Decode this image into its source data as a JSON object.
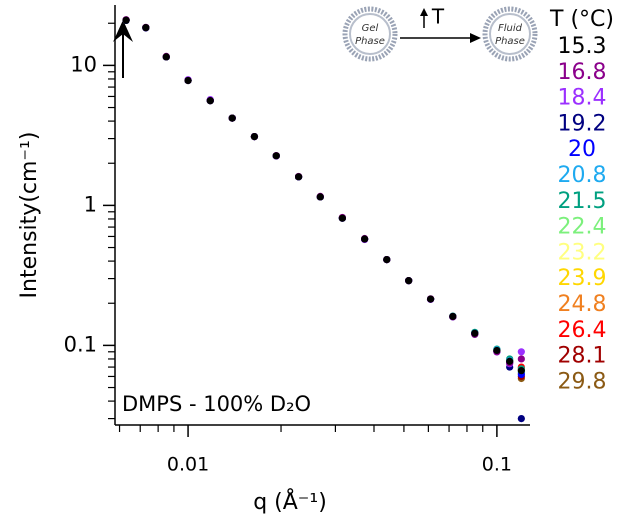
{
  "chart_data": {
    "type": "scatter",
    "xlabel": "q (Å⁻¹)",
    "ylabel": "Intensity(cm⁻¹)",
    "xscale": "log",
    "yscale": "log",
    "xlim": [
      0.0058,
      0.128
    ],
    "ylim": [
      0.027,
      27
    ],
    "xticks": [
      0.01,
      0.1
    ],
    "yticks": [
      0.1,
      1,
      10
    ],
    "xminorticks": [
      0.006,
      0.007,
      0.008,
      0.009,
      0.02,
      0.03,
      0.04,
      0.05,
      0.06,
      0.07,
      0.08,
      0.09
    ],
    "yminorticks": [
      0.03,
      0.04,
      0.05,
      0.06,
      0.07,
      0.08,
      0.09,
      0.2,
      0.3,
      0.4,
      0.5,
      0.6,
      0.7,
      0.8,
      0.9,
      2,
      3,
      4,
      5,
      6,
      7,
      8,
      9,
      20
    ],
    "annotation": "DMPS - 100% D₂O",
    "diagram": {
      "left": [
        "Gel",
        "Phase"
      ],
      "change": "T",
      "right": [
        "Fluid",
        "Phase"
      ]
    },
    "legend_title": "T (°C)",
    "x": [
      0.0063,
      0.0073,
      0.0085,
      0.01,
      0.0118,
      0.0139,
      0.0164,
      0.0193,
      0.0228,
      0.0268,
      0.0316,
      0.0373,
      0.044,
      0.0518,
      0.061,
      0.072,
      0.0848,
      0.1,
      0.11,
      0.12
    ],
    "series": [
      {
        "name": "15.3",
        "color": "#000000",
        "values": [
          21.0,
          18.6,
          11.5,
          7.8,
          5.6,
          4.2,
          3.1,
          2.26,
          1.6,
          1.15,
          0.81,
          0.575,
          0.41,
          0.29,
          0.214,
          0.161,
          0.122,
          0.092,
          0.077,
          0.066
        ]
      },
      {
        "name": "16.8",
        "color": "#8b008b",
        "values": [
          21.2,
          18.7,
          11.6,
          7.8,
          5.6,
          4.2,
          3.1,
          2.27,
          1.61,
          1.16,
          0.82,
          0.58,
          0.41,
          0.29,
          0.215,
          0.16,
          0.12,
          0.09,
          0.075,
          0.08
        ]
      },
      {
        "name": "18.4",
        "color": "#9b30ff",
        "values": [
          21.1,
          18.6,
          11.5,
          7.9,
          5.7,
          4.2,
          3.1,
          2.25,
          1.6,
          1.15,
          0.81,
          0.57,
          0.41,
          0.29,
          0.213,
          0.16,
          0.121,
          0.09,
          0.074,
          0.09
        ]
      },
      {
        "name": "19.2",
        "color": "#000080",
        "values": [
          21.0,
          18.5,
          11.5,
          7.8,
          5.6,
          4.2,
          3.1,
          2.26,
          1.6,
          1.15,
          0.81,
          0.575,
          0.41,
          0.29,
          0.214,
          0.16,
          0.12,
          0.091,
          0.07,
          0.03
        ]
      },
      {
        "name": "20",
        "color": "#0000ff",
        "values": [
          21.0,
          18.6,
          11.5,
          7.8,
          5.6,
          4.2,
          3.1,
          2.26,
          1.6,
          1.15,
          0.81,
          0.575,
          0.41,
          0.29,
          0.214,
          0.161,
          0.122,
          0.09,
          0.076,
          0.062
        ]
      },
      {
        "name": "20.8",
        "color": "#1eaaf0",
        "values": [
          21.0,
          18.6,
          11.5,
          7.8,
          5.6,
          4.2,
          3.1,
          2.26,
          1.6,
          1.15,
          0.81,
          0.575,
          0.41,
          0.29,
          0.214,
          0.16,
          0.121,
          0.093,
          0.078,
          0.064
        ]
      },
      {
        "name": "21.5",
        "color": "#00a080",
        "values": [
          21.0,
          18.6,
          11.5,
          7.8,
          5.6,
          4.2,
          3.1,
          2.26,
          1.6,
          1.15,
          0.81,
          0.575,
          0.41,
          0.29,
          0.214,
          0.162,
          0.124,
          0.094,
          0.08,
          0.068
        ]
      },
      {
        "name": "22.4",
        "color": "#7cf07c",
        "values": [
          21.0,
          18.6,
          11.5,
          7.8,
          5.6,
          4.2,
          3.1,
          2.26,
          1.6,
          1.15,
          0.81,
          0.575,
          0.41,
          0.29,
          0.214,
          0.161,
          0.122,
          0.092,
          0.077,
          0.065
        ]
      },
      {
        "name": "23.2",
        "color": "#ffff80",
        "values": [
          21.0,
          18.6,
          11.5,
          7.8,
          5.6,
          4.2,
          3.1,
          2.26,
          1.6,
          1.15,
          0.81,
          0.575,
          0.41,
          0.29,
          0.214,
          0.161,
          0.122,
          0.092,
          0.077,
          0.066
        ]
      },
      {
        "name": "23.9",
        "color": "#ffd700",
        "values": [
          21.0,
          18.6,
          11.5,
          7.8,
          5.6,
          4.2,
          3.1,
          2.26,
          1.6,
          1.15,
          0.81,
          0.575,
          0.41,
          0.29,
          0.214,
          0.161,
          0.122,
          0.092,
          0.076,
          0.067
        ]
      },
      {
        "name": "24.8",
        "color": "#f08020",
        "values": [
          21.0,
          18.6,
          11.5,
          7.8,
          5.6,
          4.2,
          3.1,
          2.26,
          1.6,
          1.15,
          0.81,
          0.575,
          0.41,
          0.29,
          0.214,
          0.161,
          0.122,
          0.092,
          0.077,
          0.063
        ]
      },
      {
        "name": "26.4",
        "color": "#ff0000",
        "values": [
          21.0,
          18.6,
          11.5,
          7.8,
          5.6,
          4.2,
          3.1,
          2.26,
          1.6,
          1.15,
          0.81,
          0.575,
          0.41,
          0.29,
          0.214,
          0.161,
          0.122,
          0.092,
          0.077,
          0.07
        ]
      },
      {
        "name": "28.1",
        "color": "#a00000",
        "values": [
          21.0,
          18.6,
          11.5,
          7.8,
          5.6,
          4.2,
          3.1,
          2.26,
          1.6,
          1.15,
          0.81,
          0.575,
          0.41,
          0.29,
          0.214,
          0.161,
          0.122,
          0.092,
          0.078,
          0.06
        ]
      },
      {
        "name": "29.8",
        "color": "#8b5a14",
        "values": [
          21.0,
          18.6,
          11.5,
          7.8,
          5.6,
          4.2,
          3.1,
          2.26,
          1.6,
          1.15,
          0.81,
          0.575,
          0.41,
          0.29,
          0.214,
          0.161,
          0.122,
          0.092,
          0.077,
          0.058
        ]
      }
    ]
  }
}
